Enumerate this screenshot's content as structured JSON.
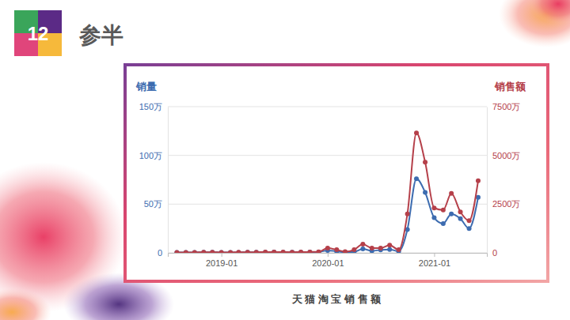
{
  "header": {
    "number": "12",
    "title": "参半"
  },
  "chart_data": {
    "type": "line",
    "caption": "天 猫 淘 宝 销 售 额",
    "y_label": "销量",
    "y2_label": "销售额",
    "x": [
      "2018-08",
      "2018-09",
      "2018-10",
      "2018-11",
      "2018-12",
      "2019-01",
      "2019-02",
      "2019-03",
      "2019-04",
      "2019-05",
      "2019-06",
      "2019-07",
      "2019-08",
      "2019-09",
      "2019-10",
      "2019-11",
      "2019-12",
      "2020-01",
      "2020-02",
      "2020-03",
      "2020-04",
      "2020-05",
      "2020-06",
      "2020-07",
      "2020-08",
      "2020-09",
      "2020-10",
      "2020-11",
      "2020-12",
      "2021-01",
      "2021-02",
      "2021-03",
      "2021-04",
      "2021-05",
      "2021-06"
    ],
    "series": [
      {
        "name": "销量",
        "color": "#3d6cb0",
        "axis": "y",
        "marker": "circle",
        "values": [
          0.5,
          0.5,
          0.5,
          0.6,
          0.6,
          0.5,
          0.5,
          0.5,
          0.6,
          0.6,
          0.7,
          0.8,
          0.7,
          0.6,
          0.7,
          0.8,
          0.9,
          2.5,
          1.5,
          0.8,
          1,
          4,
          2,
          3,
          3.5,
          1.5,
          24,
          76,
          62,
          36,
          30,
          40,
          35,
          25,
          57
        ]
      },
      {
        "name": "销售额",
        "color": "#b5404a",
        "axis": "y2",
        "marker": "circle",
        "values": [
          25,
          25,
          25,
          30,
          30,
          25,
          25,
          30,
          30,
          35,
          40,
          45,
          40,
          35,
          40,
          45,
          50,
          240,
          160,
          60,
          160,
          450,
          240,
          240,
          400,
          160,
          2000,
          6150,
          4650,
          2300,
          2200,
          3050,
          2100,
          1650,
          3700
        ]
      }
    ],
    "xlim": [
      "2018-07",
      "2021-07"
    ],
    "xticks": [
      "2019-01",
      "2020-01",
      "2021-01"
    ],
    "ylim": [
      0,
      150
    ],
    "yticks": [
      0,
      {
        "value": 50,
        "label": "50万"
      },
      {
        "value": 100,
        "label": "100万"
      },
      {
        "value": 150,
        "label": "150万"
      }
    ],
    "y2lim": [
      0,
      7500
    ],
    "y2ticks": [
      0,
      {
        "value": 2500,
        "label": "2500万"
      },
      {
        "value": 5000,
        "label": "5000万"
      },
      {
        "value": 7500,
        "label": "7500万"
      }
    ],
    "grid": true
  }
}
